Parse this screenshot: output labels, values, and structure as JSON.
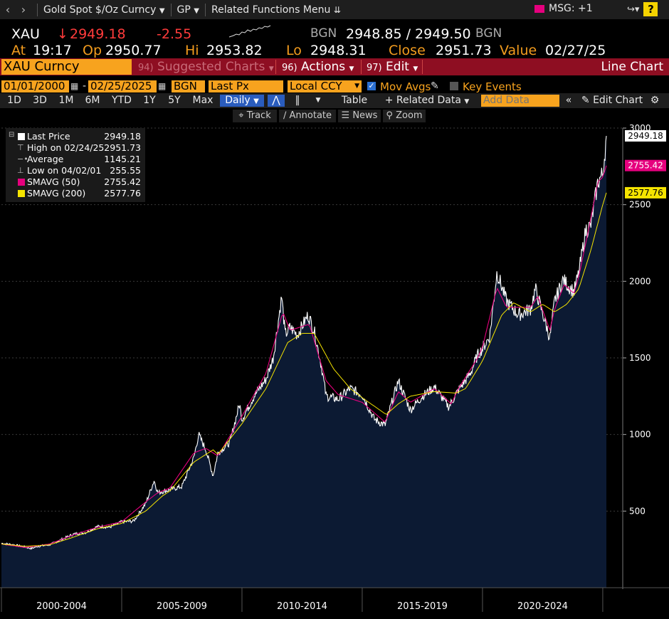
{
  "topbar": {
    "security_desc": "Gold Spot $/Oz Curncy",
    "function": "GP",
    "related": "Related Functions Menu",
    "msg": "MSG: +1",
    "help": "?"
  },
  "quote": {
    "ticker": "XAU",
    "last": "2949.18",
    "change": "-2.55",
    "source_left": "BGN",
    "bid_ask": "2948.85 / 2949.50",
    "source_right": "BGN",
    "at_label": "At",
    "at_time": "19:17",
    "op_label": "Op",
    "open": "2950.77",
    "hi_label": "Hi",
    "high": "2953.82",
    "lo_label": "Lo",
    "low": "2948.31",
    "close_label": "Close",
    "close": "2951.73",
    "value_label": "Value",
    "value_date": "02/27/25"
  },
  "menu": {
    "security": "XAU Curncy",
    "suggested_num": "94)",
    "suggested": "Suggested Charts",
    "actions_num": "96)",
    "actions": "Actions",
    "edit_num": "97)",
    "edit": "Edit",
    "chart_type": "Line Chart"
  },
  "params": {
    "start_date": "01/01/2000",
    "dash": "-",
    "end_date": "02/25/2025",
    "source": "BGN",
    "field": "Last Px",
    "currency": "Local CCY",
    "mov_avgs": "Mov Avgs",
    "key_events": "Key Events"
  },
  "range_buttons": [
    "1D",
    "3D",
    "1M",
    "6M",
    "YTD",
    "1Y",
    "5Y",
    "Max"
  ],
  "toolbar": {
    "period": "Daily",
    "table": "Table",
    "related_data": "Related Data",
    "add_data_placeholder": "Add Data",
    "edit_chart": "Edit Chart"
  },
  "tools": [
    "Track",
    "Annotate",
    "News",
    "Zoom"
  ],
  "legend": {
    "last_label": "Last Price",
    "last_value": "2949.18",
    "high_label": "High on 02/24/25",
    "high_value": "2951.73",
    "avg_label": "Average",
    "avg_value": "1145.21",
    "low_label": "Low on 04/02/01",
    "low_value": "255.55",
    "sma50_label": "SMAVG (50)",
    "sma50_value": "2755.42",
    "sma200_label": "SMAVG (200)",
    "sma200_value": "2577.76"
  },
  "colors": {
    "price_fill": "#0c1a33",
    "price_line": "#ffffff",
    "sma50": "#e6007e",
    "sma200": "#f5e400",
    "accent_orange": "#f7a31e",
    "menu_red": "#8e0e22"
  },
  "chart_data": {
    "type": "area",
    "x_labels": [
      "2000-2004",
      "2005-2009",
      "2010-2014",
      "2015-2019",
      "2020-2024"
    ],
    "y_ticks": [
      500,
      1000,
      1500,
      2000,
      2500,
      3000
    ],
    "ylim": [
      0,
      3000
    ],
    "xlim": [
      2000.0,
      2025.15
    ],
    "price_tags": [
      "2949.18",
      "2755.42",
      "2577.76"
    ],
    "series": [
      {
        "name": "Last Price",
        "x": [
          2000.0,
          2000.5,
          2001.0,
          2001.25,
          2001.5,
          2002.0,
          2002.5,
          2003.0,
          2003.5,
          2004.0,
          2004.5,
          2005.0,
          2005.5,
          2006.0,
          2006.35,
          2006.5,
          2007.0,
          2007.5,
          2008.0,
          2008.2,
          2008.5,
          2008.8,
          2009.0,
          2009.5,
          2009.9,
          2010.0,
          2010.5,
          2011.0,
          2011.3,
          2011.65,
          2011.8,
          2012.0,
          2012.3,
          2012.75,
          2013.0,
          2013.3,
          2013.5,
          2014.0,
          2014.5,
          2015.0,
          2015.5,
          2015.95,
          2016.5,
          2017.0,
          2017.5,
          2018.0,
          2018.6,
          2019.0,
          2019.5,
          2019.8,
          2020.0,
          2020.3,
          2020.6,
          2021.0,
          2021.5,
          2022.0,
          2022.2,
          2022.8,
          2023.0,
          2023.35,
          2023.8,
          2024.0,
          2024.3,
          2024.5,
          2024.8,
          2025.0,
          2025.15
        ],
        "y": [
          290,
          280,
          265,
          256,
          270,
          280,
          315,
          350,
          360,
          400,
          395,
          430,
          435,
          550,
          700,
          620,
          640,
          660,
          850,
          1000,
          900,
          730,
          880,
          950,
          1200,
          1100,
          1250,
          1360,
          1500,
          1900,
          1650,
          1700,
          1650,
          1780,
          1680,
          1450,
          1250,
          1230,
          1300,
          1260,
          1100,
          1060,
          1350,
          1160,
          1250,
          1310,
          1180,
          1290,
          1400,
          1520,
          1560,
          1640,
          2060,
          1870,
          1780,
          1820,
          1950,
          1630,
          1870,
          2010,
          1930,
          2050,
          2340,
          2360,
          2650,
          2700,
          2949
        ]
      },
      {
        "name": "SMAVG (50)",
        "x": [
          2000.0,
          2001.0,
          2002.0,
          2003.0,
          2004.0,
          2005.0,
          2006.0,
          2006.5,
          2007.0,
          2008.0,
          2008.5,
          2009.0,
          2010.0,
          2011.0,
          2011.7,
          2012.0,
          2012.8,
          2013.5,
          2014.0,
          2015.0,
          2015.95,
          2016.5,
          2017.0,
          2018.0,
          2018.7,
          2019.0,
          2019.8,
          2020.0,
          2020.6,
          2021.0,
          2022.0,
          2022.3,
          2022.8,
          2023.0,
          2023.4,
          2023.8,
          2024.0,
          2024.4,
          2024.8,
          2025.0,
          2025.15
        ],
        "y": [
          285,
          262,
          285,
          345,
          395,
          430,
          560,
          620,
          650,
          880,
          910,
          860,
          1120,
          1400,
          1800,
          1680,
          1720,
          1350,
          1260,
          1210,
          1080,
          1280,
          1210,
          1300,
          1200,
          1300,
          1500,
          1570,
          1960,
          1830,
          1830,
          1900,
          1680,
          1820,
          1980,
          1920,
          2030,
          2330,
          2650,
          2680,
          2755
        ]
      },
      {
        "name": "SMAVG (200)",
        "x": [
          2000.0,
          2001.0,
          2002.0,
          2003.0,
          2004.0,
          2005.0,
          2006.0,
          2006.7,
          2007.0,
          2008.0,
          2008.8,
          2009.0,
          2010.0,
          2011.0,
          2011.9,
          2012.5,
          2013.0,
          2013.8,
          2014.5,
          2015.0,
          2016.0,
          2016.5,
          2017.0,
          2018.0,
          2018.9,
          2019.3,
          2020.0,
          2020.8,
          2021.3,
          2022.0,
          2022.5,
          2023.0,
          2023.5,
          2024.0,
          2024.5,
          2025.0,
          2025.15
        ],
        "y": [
          285,
          270,
          280,
          330,
          385,
          420,
          500,
          600,
          630,
          820,
          900,
          870,
          1070,
          1300,
          1600,
          1660,
          1660,
          1430,
          1300,
          1240,
          1130,
          1200,
          1250,
          1280,
          1270,
          1300,
          1480,
          1780,
          1860,
          1800,
          1850,
          1800,
          1850,
          1950,
          2200,
          2500,
          2578
        ]
      }
    ]
  }
}
